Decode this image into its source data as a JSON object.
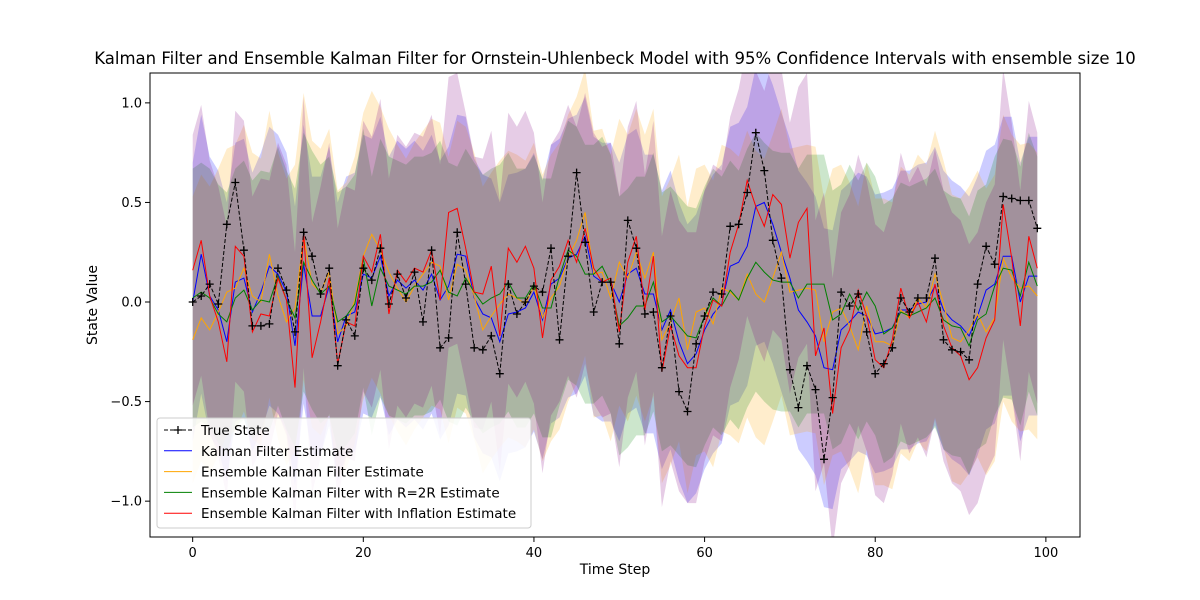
{
  "chart_data": {
    "type": "line",
    "title": "Kalman Filter and Ensemble Kalman Filter for Ornstein-Uhlenbeck Model with 95% Confidence Intervals with ensemble size 10",
    "xlabel": "Time Step",
    "ylabel": "State Value",
    "xlim": [
      -5,
      104
    ],
    "ylim": [
      -1.18,
      1.15
    ],
    "x_ticks": [
      0,
      20,
      40,
      60,
      80,
      100
    ],
    "x_tick_labels": [
      "0",
      "20",
      "40",
      "60",
      "80",
      "100"
    ],
    "y_ticks": [
      -1.0,
      -0.5,
      0.0,
      0.5,
      1.0
    ],
    "y_tick_labels": [
      "−1.0",
      "−0.5",
      "0.0",
      "0.5",
      "1.0"
    ],
    "grid": false,
    "legend_position": "lower-left",
    "x": [
      0,
      1,
      2,
      3,
      4,
      5,
      6,
      7,
      8,
      9,
      10,
      11,
      12,
      13,
      14,
      15,
      16,
      17,
      18,
      19,
      20,
      21,
      22,
      23,
      24,
      25,
      26,
      27,
      28,
      29,
      30,
      31,
      32,
      33,
      34,
      35,
      36,
      37,
      38,
      39,
      40,
      41,
      42,
      43,
      44,
      45,
      46,
      47,
      48,
      49,
      50,
      51,
      52,
      53,
      54,
      55,
      56,
      57,
      58,
      59,
      60,
      61,
      62,
      63,
      64,
      65,
      66,
      67,
      68,
      69,
      70,
      71,
      72,
      73,
      74,
      75,
      76,
      77,
      78,
      79,
      80,
      81,
      82,
      83,
      84,
      85,
      86,
      87,
      88,
      89,
      90,
      91,
      92,
      93,
      94,
      95,
      96,
      97,
      98,
      99
    ],
    "series": [
      {
        "name": "True State",
        "color": "#000000",
        "style": "dashed-plus",
        "values": [
          0.0,
          0.03,
          0.09,
          -0.01,
          0.39,
          0.6,
          0.26,
          -0.12,
          -0.12,
          -0.11,
          0.17,
          0.06,
          -0.15,
          0.35,
          0.23,
          0.04,
          0.17,
          -0.32,
          -0.09,
          -0.17,
          0.17,
          0.11,
          0.27,
          -0.01,
          0.14,
          0.02,
          0.15,
          -0.1,
          0.26,
          -0.23,
          -0.18,
          0.35,
          0.09,
          -0.23,
          -0.24,
          -0.17,
          -0.36,
          0.09,
          -0.06,
          0.0,
          0.08,
          0.05,
          0.27,
          -0.19,
          0.23,
          0.65,
          0.3,
          -0.05,
          0.1,
          0.1,
          -0.21,
          0.41,
          0.27,
          -0.06,
          -0.05,
          -0.33,
          -0.07,
          -0.45,
          -0.55,
          -0.21,
          -0.07,
          0.05,
          0.04,
          0.38,
          0.39,
          0.55,
          0.85,
          0.66,
          0.31,
          0.12,
          -0.34,
          -0.53,
          -0.32,
          -0.44,
          -0.79,
          -0.48,
          0.05,
          -0.02,
          0.04,
          -0.15,
          -0.36,
          -0.31,
          -0.23,
          0.02,
          -0.05,
          0.02,
          0.02,
          0.22,
          -0.19,
          -0.24,
          -0.25,
          -0.29,
          0.09,
          0.28,
          0.19,
          0.53,
          0.52,
          0.51,
          0.51,
          0.37
        ]
      },
      {
        "name": "Kalman Filter Estimate",
        "color": "#0000ff",
        "ci_color": "#0000ff",
        "values": [
          0.0,
          0.24,
          0.03,
          -0.04,
          -0.2,
          0.1,
          0.12,
          -0.05,
          0.05,
          0.18,
          0.14,
          0.05,
          -0.22,
          0.19,
          -0.07,
          -0.07,
          0.08,
          -0.2,
          -0.07,
          -0.05,
          0.14,
          0.12,
          0.23,
          0.03,
          0.11,
          0.07,
          0.11,
          0.06,
          0.14,
          0.01,
          0.08,
          0.24,
          0.23,
          0.02,
          -0.06,
          -0.08,
          -0.2,
          -0.06,
          -0.05,
          -0.03,
          0.05,
          -0.09,
          0.09,
          0.12,
          0.22,
          0.24,
          0.33,
          0.13,
          0.1,
          0.1,
          0.0,
          0.14,
          0.17,
          0.04,
          0.04,
          -0.14,
          -0.04,
          -0.2,
          -0.31,
          -0.26,
          -0.14,
          -0.06,
          -0.01,
          0.18,
          0.2,
          0.28,
          0.48,
          0.5,
          0.39,
          0.25,
          0.12,
          -0.04,
          -0.1,
          -0.17,
          -0.33,
          -0.34,
          -0.14,
          -0.1,
          -0.05,
          -0.07,
          -0.16,
          -0.15,
          -0.13,
          -0.04,
          -0.04,
          -0.01,
          0.0,
          0.08,
          -0.04,
          -0.09,
          -0.12,
          -0.17,
          -0.07,
          0.06,
          0.09,
          0.23,
          0.23,
          0.0,
          0.13,
          0.13
        ],
        "ci_half_width": 0.7
      },
      {
        "name": "Ensemble Kalman Filter Estimate",
        "color": "#ffa500",
        "ci_color": "#ffa500",
        "values": [
          -0.19,
          -0.08,
          -0.14,
          -0.05,
          0.05,
          0.07,
          0.17,
          0.03,
          0.0,
          0.24,
          0.03,
          -0.1,
          -0.03,
          0.33,
          0.09,
          0.05,
          0.15,
          -0.16,
          -0.12,
          0.01,
          0.23,
          0.34,
          0.26,
          0.15,
          0.07,
          0.0,
          0.08,
          0.14,
          0.2,
          0.18,
          0.01,
          0.19,
          0.16,
          0.03,
          -0.14,
          -0.07,
          -0.01,
          0.04,
          0.02,
          -0.01,
          0.08,
          -0.08,
          0.02,
          0.08,
          0.22,
          0.31,
          0.45,
          0.14,
          0.15,
          0.02,
          0.2,
          0.12,
          0.25,
          0.12,
          0.25,
          -0.19,
          -0.1,
          0.02,
          -0.24,
          -0.05,
          -0.03,
          -0.11,
          0.07,
          0.05,
          0.01,
          0.14,
          0.04,
          0.0,
          0.12,
          0.25,
          0.05,
          0.06,
          0.07,
          0.06,
          -0.2,
          -0.05,
          -0.03,
          -0.12,
          -0.24,
          -0.02,
          -0.2,
          -0.2,
          -0.22,
          -0.04,
          -0.08,
          0.02,
          -0.03,
          0.14,
          -0.01,
          -0.18,
          -0.2,
          -0.14,
          -0.06,
          -0.15,
          -0.08,
          0.22,
          0.12,
          0.07,
          0.08,
          0.03
        ],
        "ci_half_width": 0.72
      },
      {
        "name": "Ensemble Kalman Filter with R=2R Estimate",
        "color": "#008000",
        "ci_color": "#008000",
        "values": [
          0.02,
          0.05,
          0.02,
          -0.06,
          -0.1,
          0.02,
          0.06,
          -0.04,
          0.01,
          0.0,
          0.13,
          0.01,
          -0.08,
          0.2,
          0.11,
          0.04,
          0.08,
          -0.1,
          -0.07,
          -0.01,
          0.22,
          -0.02,
          0.17,
          0.08,
          0.06,
          0.04,
          0.08,
          0.08,
          0.1,
          0.16,
          0.05,
          0.03,
          0.12,
          0.05,
          -0.01,
          0.02,
          0.04,
          0.1,
          0.02,
          0.02,
          0.09,
          -0.03,
          -0.03,
          0.13,
          0.26,
          0.23,
          0.14,
          0.14,
          0.18,
          0.09,
          -0.12,
          -0.08,
          -0.02,
          -0.02,
          0.1,
          -0.1,
          -0.07,
          -0.12,
          -0.17,
          -0.18,
          -0.07,
          0.02,
          -0.02,
          0.06,
          0.01,
          0.12,
          0.2,
          0.15,
          0.11,
          0.1,
          0.1,
          0.02,
          0.09,
          0.09,
          0.09,
          -0.09,
          -0.06,
          0.04,
          -0.04,
          0.05,
          -0.02,
          -0.16,
          -0.13,
          -0.05,
          -0.07,
          -0.05,
          -0.03,
          0.02,
          -0.09,
          -0.12,
          -0.13,
          -0.22,
          -0.09,
          -0.06,
          0.08,
          0.17,
          0.16,
          0.03,
          0.2,
          0.08
        ],
        "ci_half_width": 0.65
      },
      {
        "name": "Ensemble Kalman Filter with Inflation Estimate",
        "color": "#ff0000",
        "ci_color": "#800080",
        "values": [
          0.16,
          0.31,
          0.03,
          -0.1,
          -0.3,
          0.28,
          0.23,
          -0.15,
          -0.06,
          -0.07,
          0.12,
          0.01,
          -0.43,
          0.35,
          -0.28,
          -0.1,
          0.12,
          -0.31,
          -0.1,
          -0.12,
          0.23,
          0.15,
          0.34,
          -0.06,
          0.16,
          0.1,
          0.17,
          0.15,
          0.26,
          0.01,
          0.45,
          0.47,
          0.27,
          0.05,
          0.04,
          0.18,
          -0.17,
          0.27,
          0.2,
          0.28,
          0.17,
          -0.18,
          0.11,
          0.18,
          0.31,
          0.2,
          0.37,
          0.17,
          0.1,
          0.12,
          -0.15,
          0.2,
          0.33,
          -0.04,
          0.23,
          -0.35,
          -0.12,
          -0.27,
          -0.33,
          -0.33,
          -0.12,
          0.01,
          -0.02,
          0.25,
          0.39,
          0.61,
          0.48,
          0.38,
          0.54,
          0.49,
          0.22,
          0.4,
          0.47,
          -0.27,
          -0.13,
          -0.56,
          -0.23,
          -0.14,
          0.06,
          -0.07,
          -0.29,
          -0.33,
          -0.19,
          0.07,
          -0.08,
          0.0,
          -0.1,
          0.09,
          -0.12,
          -0.23,
          -0.27,
          -0.39,
          -0.33,
          -0.18,
          -0.09,
          0.49,
          0.22,
          -0.12,
          0.33,
          0.17
        ],
        "ci_half_width": 0.68
      }
    ]
  }
}
